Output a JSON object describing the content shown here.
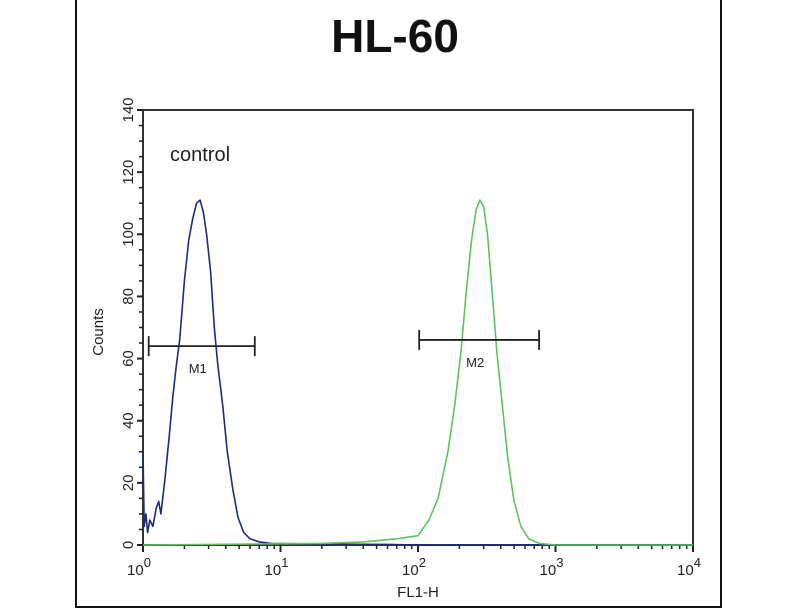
{
  "chart_data": {
    "type": "line",
    "title": "HL-60",
    "xlabel": "FL1-H",
    "ylabel": "Counts",
    "x_scale": "log",
    "xlim": [
      1,
      10000
    ],
    "ylim": [
      0,
      140
    ],
    "x_ticks": [
      {
        "value": 1,
        "base": "10",
        "exp": "0"
      },
      {
        "value": 10,
        "base": "10",
        "exp": "1"
      },
      {
        "value": 100,
        "base": "10",
        "exp": "2"
      },
      {
        "value": 1000,
        "base": "10",
        "exp": "3"
      },
      {
        "value": 10000,
        "base": "10",
        "exp": "4"
      }
    ],
    "y_ticks": [
      "0",
      "20",
      "40",
      "60",
      "80",
      "100",
      "120",
      "140"
    ],
    "grid": false,
    "annotation": "control",
    "series": [
      {
        "color": "#1c2a80",
        "points": [
          [
            1.0,
            30
          ],
          [
            1.02,
            6
          ],
          [
            1.05,
            10
          ],
          [
            1.08,
            4
          ],
          [
            1.12,
            8
          ],
          [
            1.18,
            6
          ],
          [
            1.25,
            12
          ],
          [
            1.3,
            14
          ],
          [
            1.35,
            10
          ],
          [
            1.45,
            22
          ],
          [
            1.55,
            35
          ],
          [
            1.65,
            48
          ],
          [
            1.75,
            58
          ],
          [
            1.85,
            66
          ],
          [
            2.0,
            85
          ],
          [
            2.15,
            98
          ],
          [
            2.3,
            105
          ],
          [
            2.45,
            110
          ],
          [
            2.6,
            111
          ],
          [
            2.75,
            107
          ],
          [
            2.9,
            100
          ],
          [
            3.1,
            88
          ],
          [
            3.3,
            70
          ],
          [
            3.5,
            58
          ],
          [
            3.8,
            45
          ],
          [
            4.1,
            30
          ],
          [
            4.5,
            18
          ],
          [
            4.9,
            9
          ],
          [
            5.4,
            4
          ],
          [
            6.0,
            2
          ],
          [
            7.0,
            1
          ],
          [
            8.5,
            0.5
          ],
          [
            20,
            0.3
          ],
          [
            60,
            0.2
          ],
          [
            100,
            0
          ],
          [
            1000,
            0
          ],
          [
            10000,
            0
          ]
        ]
      },
      {
        "color": "#5cc45c",
        "points": [
          [
            1,
            0
          ],
          [
            20,
            0.5
          ],
          [
            40,
            1
          ],
          [
            70,
            2
          ],
          [
            100,
            3
          ],
          [
            120,
            8
          ],
          [
            140,
            15
          ],
          [
            165,
            30
          ],
          [
            185,
            45
          ],
          [
            205,
            62
          ],
          [
            225,
            82
          ],
          [
            245,
            98
          ],
          [
            265,
            108
          ],
          [
            282,
            111
          ],
          [
            300,
            109
          ],
          [
            320,
            100
          ],
          [
            345,
            82
          ],
          [
            375,
            62
          ],
          [
            410,
            45
          ],
          [
            450,
            28
          ],
          [
            500,
            14
          ],
          [
            560,
            6
          ],
          [
            640,
            2
          ],
          [
            760,
            0.5
          ],
          [
            1000,
            0
          ],
          [
            10000,
            0
          ]
        ]
      }
    ],
    "markers": [
      {
        "label": "M1",
        "range": [
          1.1,
          6.5
        ],
        "y": 64
      },
      {
        "label": "M2",
        "range": [
          102,
          760
        ],
        "y": 66
      }
    ]
  }
}
